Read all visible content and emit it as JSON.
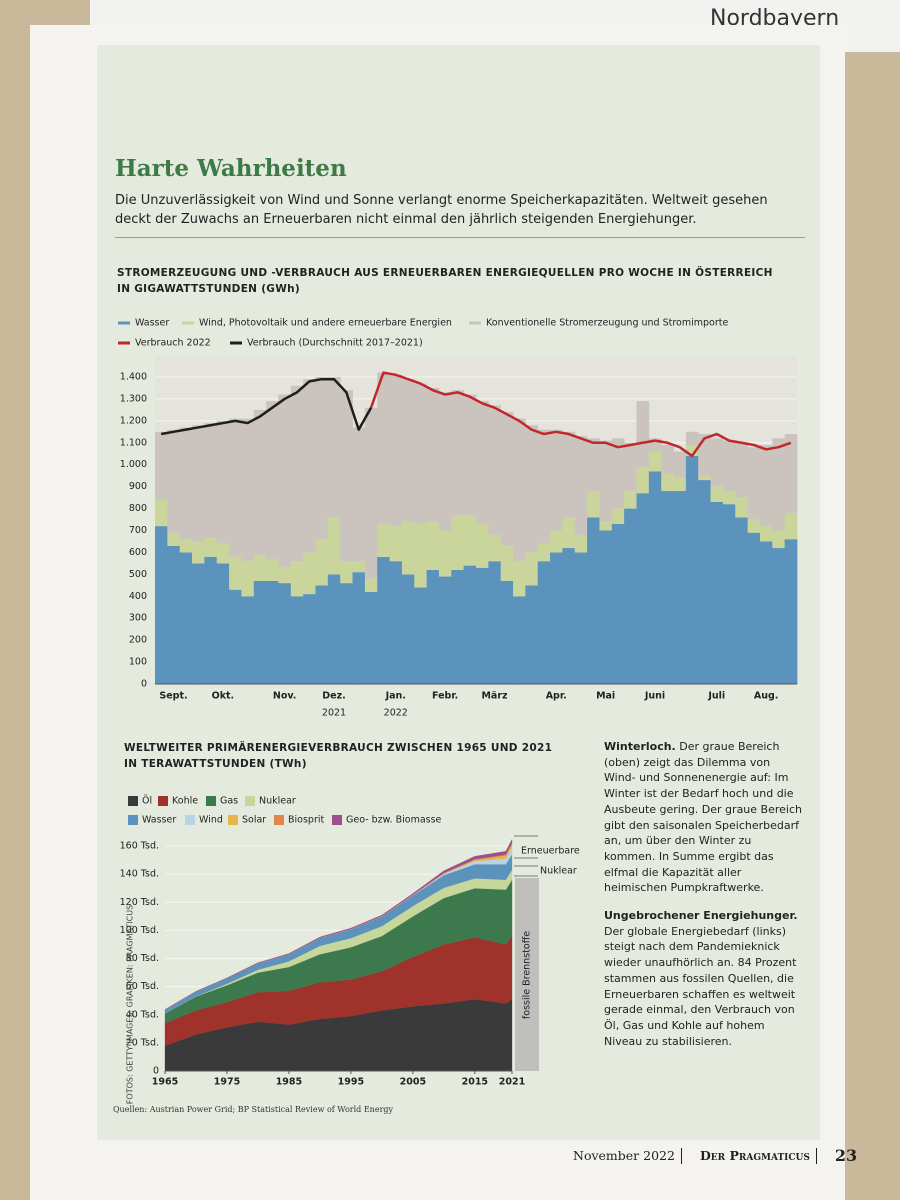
{
  "page": {
    "brand": "Nordbayern",
    "title": "Harte Wahrheiten",
    "intro": "Die Unzuverlässigkeit von Wind und Sonne verlangt enorme Speicherkapazitäten. Weltweit gesehen deckt der Zuwachs an Erneuerbaren nicht einmal den jährlich steigenden Energiehunger.",
    "credit": "FOTOS: GETTY IMAGES; GRAFIKEN: PRAGMATICUS",
    "sources": "Quellen: Austrian Power Grid; BP Statistical Review of World Energy",
    "footer": {
      "date": "November 2022",
      "magazine": "Der Pragmaticus",
      "page": "23"
    }
  },
  "sidebar": [
    {
      "lead": "Winterloch.",
      "text": "Der graue Bereich (oben) zeigt das Dilemma von Wind- und Sonnenenergie auf: Im Winter ist der Bedarf hoch und die Ausbeute gering. Der graue Bereich gibt den saisonalen Speicherbedarf an, um über den Winter zu kommen. In Summe ergibt das elfmal die Kapazität aller heimischen Pumpkraftwerke."
    },
    {
      "lead": "Ungebrochener Energiehunger.",
      "text": "Der globale Energiebedarf (links) steigt nach dem Pandemieknick wieder unaufhörlich an. 84 Prozent stammen aus fossilen Quellen, die Erneuerbaren schaffen es weltweit gerade einmal, den Verbrauch von Öl, Gas und Kohle auf hohem Niveau zu stabilisieren."
    }
  ],
  "chart_data": [
    {
      "type": "stacked-step-area",
      "title": "STROMERZEUGUNG UND -VERBRAUCH AUS ERNEUERBAREN ENERGIEQUELLEN PRO WOCHE IN ÖSTERREICH",
      "subtitle": "IN GIGAWATTSTUNDEN (GWh)",
      "categories": [
        null,
        "Sept.",
        null,
        null,
        null,
        "Okt.",
        null,
        null,
        null,
        null,
        "Nov.",
        null,
        null,
        null,
        "Dez.",
        null,
        null,
        null,
        null,
        "Jan.",
        null,
        null,
        null,
        "Febr.",
        null,
        null,
        null,
        "März",
        null,
        null,
        null,
        null,
        "Apr.",
        null,
        null,
        null,
        "Mai",
        null,
        null,
        null,
        "Juni",
        null,
        null,
        null,
        null,
        "Juli",
        null,
        null,
        null,
        "Aug.",
        null,
        null
      ],
      "x_group_labels": [
        "2021",
        "2022"
      ],
      "series": [
        {
          "name": "Wasser",
          "color": "#5b93bd",
          "values": [
            720,
            630,
            600,
            550,
            580,
            550,
            430,
            400,
            470,
            470,
            460,
            400,
            410,
            450,
            500,
            460,
            510,
            420,
            580,
            560,
            500,
            440,
            520,
            490,
            520,
            540,
            530,
            560,
            470,
            400,
            450,
            560,
            600,
            620,
            600,
            760,
            700,
            730,
            800,
            870,
            970,
            880,
            880,
            1040,
            930,
            830,
            820,
            760,
            690,
            650,
            620,
            660
          ]
        },
        {
          "name": "Wind, Photovoltaik und andere erneuerbare Energien",
          "color": "#c9d59b",
          "values": [
            120,
            60,
            60,
            100,
            90,
            90,
            150,
            160,
            120,
            100,
            70,
            160,
            190,
            210,
            260,
            100,
            50,
            60,
            150,
            160,
            240,
            290,
            220,
            210,
            250,
            230,
            200,
            120,
            160,
            160,
            150,
            80,
            100,
            140,
            80,
            120,
            40,
            70,
            80,
            120,
            90,
            80,
            60,
            50,
            20,
            70,
            60,
            90,
            60,
            70,
            80,
            120
          ]
        },
        {
          "name": "Konventionelle Stromerzeugung und Stromimporte",
          "color": "#cbc4be",
          "values": [
            310,
            470,
            510,
            530,
            520,
            560,
            630,
            650,
            660,
            720,
            790,
            800,
            790,
            740,
            640,
            780,
            610,
            780,
            690,
            690,
            650,
            640,
            610,
            630,
            570,
            550,
            560,
            590,
            610,
            650,
            580,
            520,
            460,
            390,
            450,
            240,
            370,
            320,
            220,
            300,
            60,
            130,
            120,
            60,
            190,
            220,
            230,
            250,
            330,
            370,
            420,
            360
          ]
        }
      ],
      "lines": [
        {
          "name": "Verbrauch 2022",
          "color": "#c0282d",
          "values": [
            null,
            null,
            null,
            null,
            null,
            null,
            null,
            null,
            null,
            null,
            null,
            null,
            null,
            null,
            null,
            null,
            null,
            1260,
            1420,
            1410,
            1390,
            1370,
            1340,
            1320,
            1330,
            1310,
            1280,
            1260,
            1230,
            1200,
            1160,
            1140,
            1150,
            1140,
            1120,
            1100,
            1100,
            1080,
            1090,
            1100,
            1110,
            1100,
            1080,
            1040,
            1120,
            1140,
            1110,
            1100,
            1090,
            1070,
            1080,
            1100
          ]
        },
        {
          "name": "Verbrauch (Durchschnitt 2017–2021)",
          "color": "#1e1e1e",
          "values": [
            1140,
            1150,
            1160,
            1170,
            1180,
            1190,
            1200,
            1190,
            1220,
            1260,
            1300,
            1330,
            1380,
            1390,
            1390,
            1330,
            1160,
            1260,
            null,
            null,
            null,
            null,
            null,
            null,
            null,
            null,
            null,
            null,
            null,
            null,
            null,
            null,
            null,
            null,
            null,
            null,
            null,
            null,
            null,
            null,
            null,
            null,
            null,
            null,
            null,
            null,
            null,
            null,
            null,
            null,
            null,
            null
          ]
        }
      ],
      "ylim": [
        0,
        1400
      ],
      "yticks": [
        0,
        100,
        200,
        300,
        400,
        500,
        600,
        700,
        800,
        900,
        {
          "value": 1000,
          "label": "1.000"
        },
        {
          "value": 1100,
          "label": "1.100"
        },
        {
          "value": 1200,
          "label": "1.200"
        },
        {
          "value": 1300,
          "label": "1.300"
        },
        {
          "value": 1400,
          "label": "1.400"
        }
      ],
      "grid": true
    },
    {
      "type": "stacked-area",
      "title": "WELTWEITER PRIMÄRENERGIEVERBRAUCH ZWISCHEN 1965 UND 2021",
      "subtitle": "IN TERAWATTSTUNDEN (TWh)",
      "x": [
        1965,
        1970,
        1975,
        1980,
        1985,
        1990,
        1995,
        2000,
        2005,
        2010,
        2015,
        2020,
        2021
      ],
      "series": [
        {
          "name": "Öl",
          "color": "#3a3a3a",
          "values": [
            18000,
            26000,
            31000,
            35000,
            33000,
            37000,
            39000,
            43000,
            46000,
            48000,
            51000,
            48000,
            51000
          ]
        },
        {
          "name": "Kohle",
          "color": "#a0322c",
          "values": [
            16000,
            17000,
            18000,
            21000,
            24000,
            26000,
            26000,
            28000,
            35000,
            42000,
            44000,
            42000,
            45000
          ]
        },
        {
          "name": "Gas",
          "color": "#3c7a4e",
          "values": [
            7000,
            10000,
            12000,
            14000,
            17000,
            20000,
            23000,
            25000,
            29000,
            33000,
            35000,
            39000,
            40000
          ]
        },
        {
          "name": "Nuklear",
          "color": "#c7d69a",
          "values": [
            100,
            200,
            1000,
            2000,
            4000,
            6000,
            6500,
            7000,
            7300,
            7300,
            7000,
            7000,
            7100
          ]
        },
        {
          "name": "Wasser",
          "color": "#5b93bd",
          "values": [
            2500,
            3300,
            4000,
            4700,
            5100,
            5700,
            6400,
            7000,
            7500,
            9000,
            10000,
            11000,
            11000
          ]
        },
        {
          "name": "Wind",
          "color": "#b9d3e6",
          "values": [
            0,
            0,
            0,
            0,
            0,
            10,
            50,
            100,
            300,
            1000,
            2300,
            4000,
            4800
          ]
        },
        {
          "name": "Solar",
          "color": "#e8b54a",
          "values": [
            0,
            0,
            0,
            0,
            0,
            0,
            0,
            0,
            10,
            100,
            800,
            2300,
            2700
          ]
        },
        {
          "name": "Biosprit",
          "color": "#e0874a",
          "values": [
            0,
            0,
            0,
            10,
            50,
            80,
            100,
            100,
            200,
            500,
            600,
            600,
            600
          ]
        },
        {
          "name": "Geo- bzw. Biomasse",
          "color": "#9b4f8e",
          "values": [
            100,
            150,
            200,
            300,
            400,
            500,
            600,
            700,
            900,
            1500,
            2000,
            2400,
            2500
          ]
        }
      ],
      "annotations": [
        "Erneuerbare",
        "Nuklear",
        "fossile Brennstoffe"
      ],
      "xlim": [
        1965,
        2021
      ],
      "xticks": [
        1965,
        1975,
        1985,
        1995,
        2005,
        2015,
        2021
      ],
      "ylim": [
        0,
        165000
      ],
      "yticks": [
        0,
        {
          "value": 20000,
          "label": "20 Tsd."
        },
        {
          "value": 40000,
          "label": "40 Tsd."
        },
        {
          "value": 60000,
          "label": "60 Tsd."
        },
        {
          "value": 80000,
          "label": "80 Tsd."
        },
        {
          "value": 100000,
          "label": "100 Tsd."
        },
        {
          "value": 120000,
          "label": "120 Tsd."
        },
        {
          "value": 140000,
          "label": "140 Tsd."
        },
        {
          "value": 160000,
          "label": "160 Tsd."
        }
      ],
      "grid": true
    }
  ]
}
